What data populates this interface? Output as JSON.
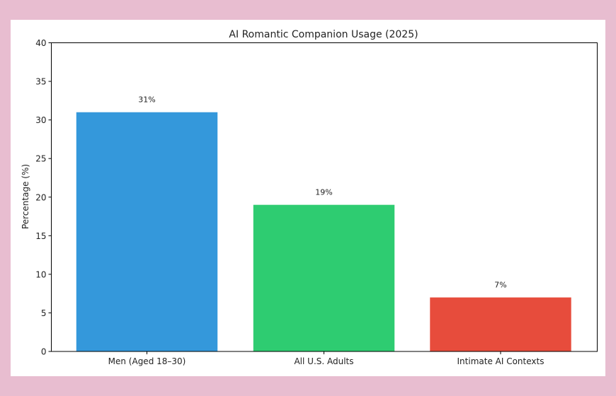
{
  "background_color": "#e8bdd0",
  "chart_data": {
    "type": "bar",
    "title": "AI Romantic Companion Usage (2025)",
    "xlabel": "",
    "ylabel": "Percentage (%)",
    "ylim": [
      0,
      40
    ],
    "yticks": [
      0,
      5,
      10,
      15,
      20,
      25,
      30,
      35,
      40
    ],
    "categories": [
      "Men (Aged 18–30)",
      "All U.S. Adults",
      "Intimate AI Contexts"
    ],
    "values": [
      31,
      19,
      7
    ],
    "data_labels": [
      "31%",
      "19%",
      "7%"
    ],
    "colors": [
      "#3498db",
      "#2ecc71",
      "#e74c3c"
    ],
    "grid": false,
    "legend": "none"
  }
}
